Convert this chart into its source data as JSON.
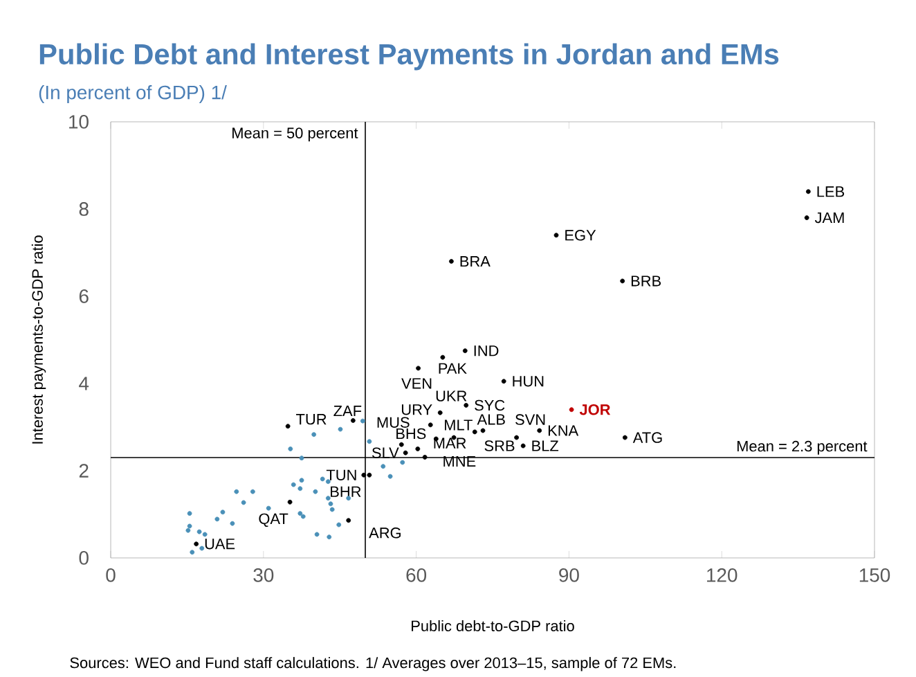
{
  "chart_data": {
    "type": "scatter",
    "title": "Public Debt and Interest Payments in Jordan and EMs",
    "subtitle": "(In percent of GDP) 1/",
    "xlabel": "Public debt-to-GDP ratio",
    "ylabel": "Interest payments-to-GDP ratio",
    "xlim": [
      0,
      150
    ],
    "xticks": [
      0,
      30,
      60,
      90,
      120,
      150
    ],
    "ylim": [
      0,
      10
    ],
    "yticks": [
      0,
      2,
      4,
      6,
      8,
      10
    ],
    "series": [
      {
        "color": "#4a90b8",
        "x": [
          35.3,
          39.9,
          45.1,
          49.5,
          50.8,
          37.5,
          53.5,
          57.3,
          54.9,
          41.6,
          42.7,
          35.9,
          37.5,
          37.2,
          40.2,
          42.7,
          46.7,
          43.2,
          43.5,
          31.0,
          24.7,
          27.9,
          26.1,
          22.0,
          20.9,
          23.9,
          37.2,
          37.8,
          44.8,
          40.5,
          42.9,
          15.5,
          15.5,
          15.2,
          17.4,
          18.5,
          17.9,
          16.0
        ],
        "values": [
          2.5,
          2.83,
          2.95,
          3.14,
          2.67,
          2.29,
          2.1,
          2.19,
          1.87,
          1.81,
          1.75,
          1.68,
          1.78,
          1.59,
          1.52,
          1.37,
          1.37,
          1.24,
          1.11,
          1.14,
          1.52,
          1.52,
          1.27,
          1.05,
          0.89,
          0.79,
          1.02,
          0.95,
          0.76,
          0.54,
          0.48,
          1.02,
          0.73,
          0.63,
          0.6,
          0.54,
          0.22,
          0.13
        ]
      },
      {
        "color": "#000000",
        "x": [
          137,
          136.7,
          87.5,
          66.9,
          100.5,
          69.6,
          65.2,
          60.4,
          77.2,
          69.8,
          64.7,
          62.8,
          63.9,
          67.4,
          71.5,
          73.1,
          79.7,
          84.2,
          81,
          101,
          57.1,
          60.3,
          57.9,
          61.7,
          34.8,
          47.6,
          49.7,
          50.8,
          35.2,
          46.7,
          16.8
        ],
        "values": [
          8.4,
          7.8,
          7.4,
          6.8,
          6.35,
          4.75,
          4.6,
          4.35,
          4.05,
          3.5,
          3.33,
          3.05,
          2.73,
          2.76,
          2.89,
          2.92,
          2.76,
          2.92,
          2.57,
          2.76,
          2.6,
          2.5,
          2.41,
          2.31,
          3.02,
          3.15,
          1.9,
          1.9,
          1.28,
          0.86,
          0.32
        ]
      },
      {
        "color": "#c00000",
        "x": [
          90.5
        ],
        "values": [
          3.4
        ]
      }
    ],
    "ref_lines": [
      {
        "axis": "x",
        "value": 50,
        "label": "Mean = 50 percent",
        "color": "#000000"
      },
      {
        "axis": "y",
        "value": 2.3,
        "label": "Mean = 2.3 percent",
        "color": "#000000"
      }
    ],
    "annotations": [
      {
        "text": "LEB",
        "x": 137,
        "y": 8.4
      },
      {
        "text": "JAM",
        "x": 136.7,
        "y": 7.8
      },
      {
        "text": "EGY",
        "x": 87.5,
        "y": 7.4
      },
      {
        "text": "BRA",
        "x": 66.9,
        "y": 6.8
      },
      {
        "text": "BRB",
        "x": 100.5,
        "y": 6.35
      },
      {
        "text": "IND",
        "x": 69.6,
        "y": 4.75
      },
      {
        "text": "PAK",
        "x": 65.2,
        "y": 4.6
      },
      {
        "text": "VEN",
        "x": 60.4,
        "y": 4.35
      },
      {
        "text": "HUN",
        "x": 77.2,
        "y": 4.05
      },
      {
        "text": "SYC",
        "x": 69.8,
        "y": 3.5
      },
      {
        "text": "UKR",
        "x": 64.7,
        "y": 3.33
      },
      {
        "text": "URY",
        "x": 62.8,
        "y": 3.05
      },
      {
        "text": "MLT",
        "x": 63.9,
        "y": 2.73
      },
      {
        "text": "MAR",
        "x": 67.4,
        "y": 2.76
      },
      {
        "text": "ALB",
        "x": 71.5,
        "y": 2.89
      },
      {
        "text": "SRB",
        "x": 73.1,
        "y": 2.92
      },
      {
        "text": "SVN",
        "x": 79.7,
        "y": 2.76
      },
      {
        "text": "KNA",
        "x": 84.2,
        "y": 2.92
      },
      {
        "text": "BLZ",
        "x": 81,
        "y": 2.57
      },
      {
        "text": "ATG",
        "x": 101,
        "y": 2.76
      },
      {
        "text": "JOR",
        "x": 90.5,
        "y": 3.4
      },
      {
        "text": "MUS",
        "x": 57.1,
        "y": 2.6
      },
      {
        "text": "BHS",
        "x": 60.3,
        "y": 2.5
      },
      {
        "text": "SLV",
        "x": 57.9,
        "y": 2.41
      },
      {
        "text": "MNE",
        "x": 61.7,
        "y": 2.31
      },
      {
        "text": "TUR",
        "x": 34.8,
        "y": 3.02
      },
      {
        "text": "ZAF",
        "x": 47.6,
        "y": 3.15
      },
      {
        "text": "TUN",
        "x": 49.7,
        "y": 1.9
      },
      {
        "text": "BHR",
        "x": 50.8,
        "y": 1.9
      },
      {
        "text": "QAT",
        "x": 35.2,
        "y": 1.28
      },
      {
        "text": "ARG",
        "x": 46.7,
        "y": 0.86
      },
      {
        "text": "UAE",
        "x": 16.8,
        "y": 0.32
      },
      "Sources: WEO and Fund staff calculations. 1/ Averages over 2013–15,  sample of 72 EMs."
    ]
  }
}
